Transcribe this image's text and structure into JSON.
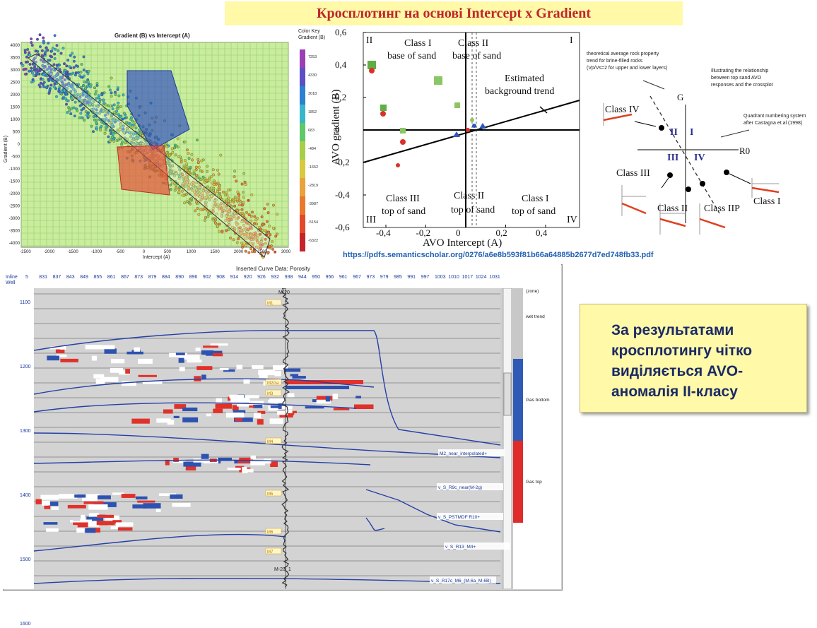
{
  "title": "Кросплотинг на основі Intercept x Gradient",
  "scatter": {
    "title": "Gradient (B) vs Intercept (A)",
    "xlabel": "Intercept (A)",
    "ylabel": "Gradient (B)",
    "x_ticks": [
      "-2500",
      "-2000",
      "-1500",
      "-1000",
      "-500",
      "0",
      "500",
      "1000",
      "1500",
      "2000",
      "2500",
      "3000"
    ],
    "y_ticks": [
      "4000",
      "3500",
      "3000",
      "2500",
      "2000",
      "1500",
      "1000",
      "500",
      "0",
      "-500",
      "-1000",
      "-1500",
      "-2000",
      "-2500",
      "-3000",
      "-3500",
      "-4000"
    ],
    "colorkey_title": "Color Key",
    "colorkey_sub": "Gradient (B)",
    "colorkey_values": [
      "7253",
      "4330",
      "3018",
      "1852",
      "683",
      "-484",
      "-1652",
      "-2819",
      "-3987",
      "-5154",
      "-6322"
    ],
    "colorkey_colors": [
      "#9b3fb5",
      "#5b4fc4",
      "#2d7fd0",
      "#37b7c9",
      "#60c76b",
      "#a8cf4a",
      "#d8c93d",
      "#e8a33a",
      "#e9792e",
      "#e24a2a",
      "#c7232a"
    ]
  },
  "avo": {
    "xlabel": "AVO Intercept (A)",
    "ylabel": "AVO gradient (B)",
    "x_ticks": [
      "-0,4",
      "-0,2",
      "0",
      "0,2",
      "0,4"
    ],
    "y_ticks": [
      "0,6",
      "0,4",
      "0,2",
      "0",
      "-0,2",
      "-0,4",
      "-0,6"
    ],
    "quadrants": {
      "q1": "I",
      "q2": "II",
      "q3": "III",
      "q4": "IV"
    },
    "labels": {
      "class1_base": "Class I",
      "class1_base_2": "base of sand",
      "class2_base": "Class II",
      "class2_base_2": "base of sand",
      "trend": "Estimated",
      "trend_2": "background trend",
      "class3_top": "Class III",
      "class3_top_2": "top of sand",
      "class2_top": "Class II",
      "class2_top_2": "top of sand",
      "class1_top": "Class I",
      "class1_top_2": "top of sand"
    }
  },
  "schematic": {
    "note1": "theoretical average rock property\ntrend for brine-filled rocks\n(Vp/Vs=2 for upper and lower layers)",
    "note2": "Illustrating  the relationship\nbetween top sand AVO\nresponses and the crossplot",
    "note3": "Quadrant numbering system\nafter Castagna et.al (1998)",
    "axis_g": "G",
    "axis_r0": "R0",
    "q1": "I",
    "q2": "II",
    "q3": "III",
    "q4": "IV",
    "class4": "Class IV",
    "class3": "Class III",
    "class2": "Class II",
    "class2p": "Class IIP",
    "class1": "Class I"
  },
  "url": "https://pdfs.semanticscholar.org/0276/a6e8b593f81b66a64885b2677d7ed748fb33.pdf",
  "seismic": {
    "header_title": "Inserted Curve Data: Porosity",
    "inline_label": "Inline",
    "well_label": "Well",
    "inline_numbers": [
      "5",
      "831",
      "837",
      "843",
      "849",
      "855",
      "861",
      "867",
      "873",
      "879",
      "884",
      "890",
      "896",
      "902",
      "908",
      "914",
      "920",
      "926",
      "932",
      "938",
      "944",
      "950",
      "956",
      "961",
      "967",
      "973",
      "979",
      "985",
      "991",
      "997",
      "1003",
      "1010",
      "1017",
      "1024",
      "1031"
    ],
    "well_name": "M-20",
    "well_name_bottom": "M-20_1",
    "depths": [
      "1100",
      "1200",
      "1300",
      "1400",
      "1500",
      "1600"
    ],
    "horizon_labels": [
      "M2_near_interpolated+",
      "v_S_R9c_near(M-2g)",
      "v_S_PSTMDF R10+",
      "v_S_R13_M4+",
      "v_S_R17c_M6_(M-6a_M-6B)"
    ],
    "marker_labels": [
      "M1",
      "M2Ga",
      "M3",
      "M4",
      "M5",
      "M6",
      "M7"
    ],
    "zone_header": "(zone)",
    "zones": [
      "wet trend",
      "Gas bottom",
      "Gas top"
    ],
    "zone_colors": [
      "#c8c8c8",
      "#2f5bb6",
      "#e02b2b"
    ]
  },
  "info": "За результатами\nкросплотингу чітко\nвиділяється AVO-\nаномалія II-класу"
}
